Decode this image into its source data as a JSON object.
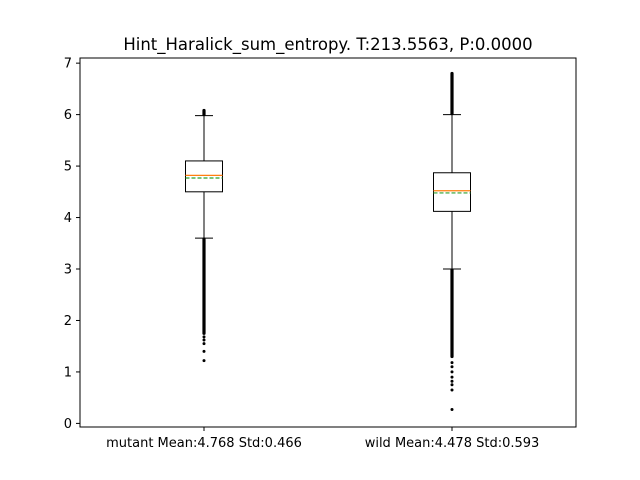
{
  "chart_data": {
    "type": "box",
    "title": "Hint_Haralick_sum_entropy. T:213.5563, P:0.0000",
    "xlabel": "",
    "ylabel": "",
    "ylim": [
      -0.07,
      7.1
    ],
    "yticks": [
      0,
      1,
      2,
      3,
      4,
      5,
      6,
      7
    ],
    "grid": false,
    "colors": {
      "median": "#ff7f0e",
      "mean": "#2ca02c",
      "box": "#000000"
    },
    "series": [
      {
        "label": "mutant Mean:4.768 Std:0.466",
        "whisker_low": 3.6,
        "q1": 4.5,
        "median": 4.82,
        "mean": 4.768,
        "q3": 5.1,
        "whisker_high": 5.98,
        "fliers_dense_low": [
          1.75,
          3.58
        ],
        "fliers_dense_high": [
          6.0,
          6.08
        ],
        "fliers": [
          1.22,
          1.4,
          1.55,
          1.62,
          1.68
        ]
      },
      {
        "label": "wild Mean:4.478 Std:0.593",
        "whisker_low": 3.0,
        "q1": 4.12,
        "median": 4.52,
        "mean": 4.478,
        "q3": 4.87,
        "whisker_high": 6.0,
        "fliers_dense_low": [
          1.3,
          2.98
        ],
        "fliers_dense_high": [
          6.02,
          6.8
        ],
        "fliers": [
          0.27,
          0.65,
          0.75,
          0.82,
          0.9,
          1.0,
          1.1,
          1.18
        ]
      }
    ]
  }
}
